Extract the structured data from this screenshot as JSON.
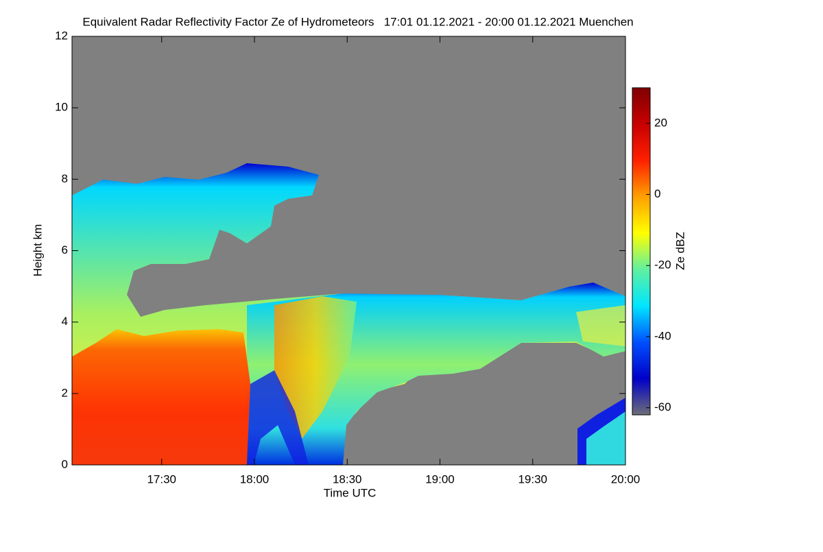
{
  "chart_data": {
    "type": "heatmap",
    "title": "Equivalent Radar Reflectivity Factor Ze of Hydrometeors   17:01 01.12.2021 - 20:00 01.12.2021 Muenchen",
    "xlabel": "Time UTC",
    "ylabel": "Height km",
    "xlim": [
      17.0167,
      20.0
    ],
    "xticks": [
      {
        "value": 17.5,
        "label": "17:30"
      },
      {
        "value": 18.0,
        "label": "18:00"
      },
      {
        "value": 18.5,
        "label": "18:30"
      },
      {
        "value": 19.0,
        "label": "19:00"
      },
      {
        "value": 19.5,
        "label": "19:30"
      },
      {
        "value": 20.0,
        "label": "20:00"
      }
    ],
    "ylim": [
      0,
      12
    ],
    "yticks": [
      0,
      2,
      4,
      6,
      8,
      10,
      12
    ],
    "colorbar": {
      "label": "Ze dBZ",
      "lim": [
        -62,
        30
      ],
      "ticks": [
        20,
        0,
        -20,
        -40,
        -60
      ],
      "colors": [
        "#6e6e78",
        "#0000c8",
        "#0050ff",
        "#00e6ff",
        "#60f0a0",
        "#ffff00",
        "#ffa000",
        "#ff2000",
        "#c80000",
        "#800000"
      ]
    }
  }
}
